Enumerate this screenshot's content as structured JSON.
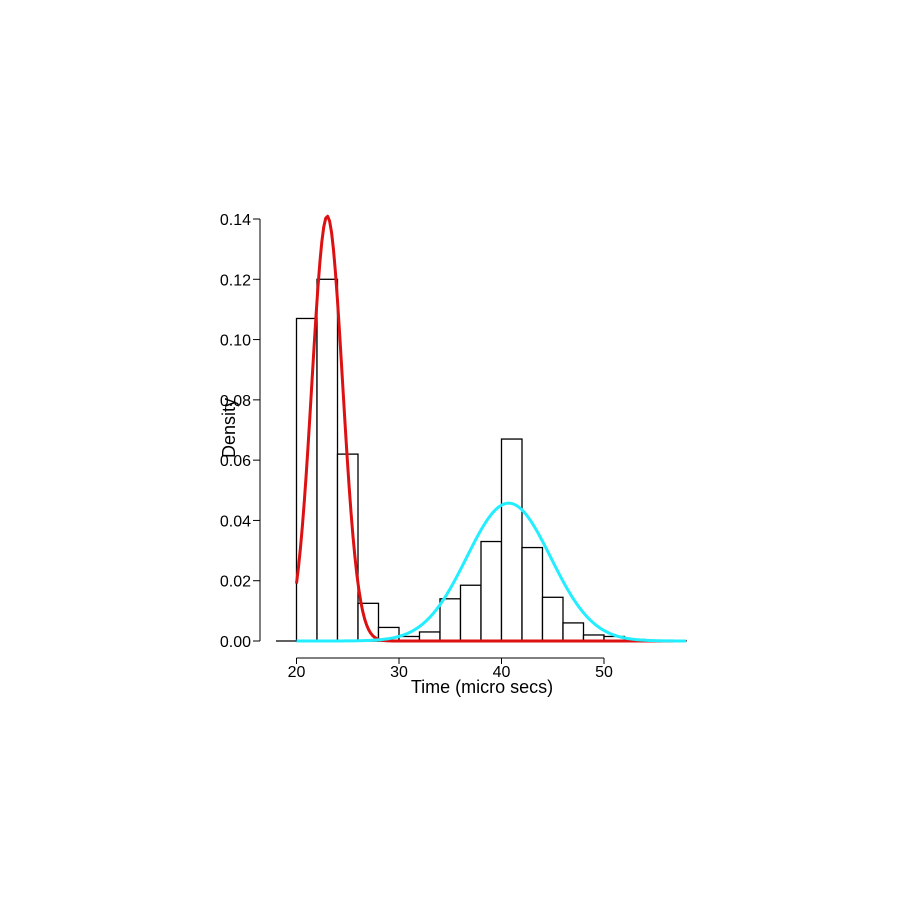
{
  "chart_data": {
    "type": "histogram",
    "title": "",
    "xlabel": "Time (micro secs)",
    "ylabel": "Density",
    "xlim": [
      18,
      58
    ],
    "ylim": [
      0,
      0.14
    ],
    "x_ticks": [
      20,
      30,
      40,
      50
    ],
    "y_ticks": [
      0.0,
      0.02,
      0.04,
      0.06,
      0.08,
      0.1,
      0.12,
      0.14
    ],
    "y_tick_labels": [
      "0.00",
      "0.02",
      "0.04",
      "0.06",
      "0.08",
      "0.10",
      "0.12",
      "0.14"
    ],
    "grid": false,
    "legend": "none",
    "bins": [
      {
        "x0": 20,
        "x1": 22,
        "density": 0.107
      },
      {
        "x0": 22,
        "x1": 24,
        "density": 0.12
      },
      {
        "x0": 24,
        "x1": 26,
        "density": 0.062
      },
      {
        "x0": 26,
        "x1": 28,
        "density": 0.0125
      },
      {
        "x0": 28,
        "x1": 30,
        "density": 0.0045
      },
      {
        "x0": 30,
        "x1": 32,
        "density": 0.0015
      },
      {
        "x0": 32,
        "x1": 34,
        "density": 0.003
      },
      {
        "x0": 34,
        "x1": 36,
        "density": 0.014
      },
      {
        "x0": 36,
        "x1": 38,
        "density": 0.0185
      },
      {
        "x0": 38,
        "x1": 40,
        "density": 0.033
      },
      {
        "x0": 40,
        "x1": 42,
        "density": 0.067
      },
      {
        "x0": 42,
        "x1": 44,
        "density": 0.031
      },
      {
        "x0": 44,
        "x1": 46,
        "density": 0.0145
      },
      {
        "x0": 46,
        "x1": 48,
        "density": 0.006
      },
      {
        "x0": 48,
        "x1": 50,
        "density": 0.002
      },
      {
        "x0": 50,
        "x1": 52,
        "density": 0.0015
      },
      {
        "x0": 52,
        "x1": 54,
        "density": 0.0005
      },
      {
        "x0": 54,
        "x1": 56,
        "density": 0.0002
      },
      {
        "x0": 56,
        "x1": 58,
        "density": 0.0001
      }
    ],
    "series": [
      {
        "type": "normal-curve",
        "color": "#dd1111",
        "mean": 23.0,
        "sd": 1.5,
        "weight": 0.53,
        "x_range": [
          20,
          58
        ]
      },
      {
        "type": "normal-curve",
        "color": "#22eeff",
        "mean": 40.7,
        "sd": 4.1,
        "weight": 0.47,
        "x_range": [
          20,
          58
        ]
      }
    ]
  }
}
